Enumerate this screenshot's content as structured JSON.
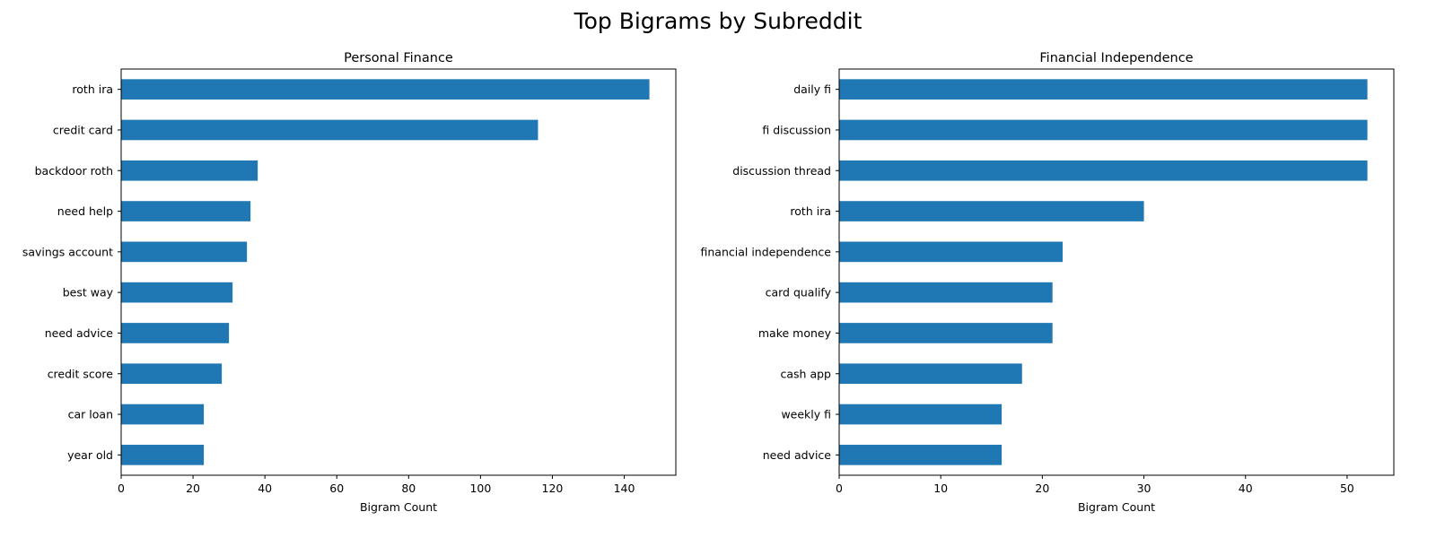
{
  "suptitle": "Top Bigrams by Subreddit",
  "colors": {
    "bar": "#1f77b4",
    "axis": "#000000",
    "background": "#ffffff"
  },
  "chart_data": [
    {
      "type": "bar",
      "orientation": "horizontal",
      "title": "Personal Finance",
      "xlabel": "Bigram Count",
      "ylabel": "",
      "categories": [
        "roth ira",
        "credit card",
        "backdoor roth",
        "need help",
        "savings account",
        "best way",
        "need advice",
        "credit score",
        "car loan",
        "year old"
      ],
      "values": [
        147,
        116,
        38,
        36,
        35,
        31,
        30,
        28,
        23,
        23
      ],
      "xlim": [
        0,
        154.35
      ],
      "xticks": [
        0,
        20,
        40,
        60,
        80,
        100,
        120,
        140
      ],
      "grid": false,
      "legend": false
    },
    {
      "type": "bar",
      "orientation": "horizontal",
      "title": "Financial Independence",
      "xlabel": "Bigram Count",
      "ylabel": "",
      "categories": [
        "daily fi",
        "fi discussion",
        "discussion thread",
        "roth ira",
        "financial independence",
        "card qualify",
        "make money",
        "cash app",
        "weekly fi",
        "need advice"
      ],
      "values": [
        52,
        52,
        52,
        30,
        22,
        21,
        21,
        18,
        16,
        16
      ],
      "xlim": [
        0,
        54.6
      ],
      "xticks": [
        0,
        10,
        20,
        30,
        40,
        50
      ],
      "grid": false,
      "legend": false
    }
  ]
}
